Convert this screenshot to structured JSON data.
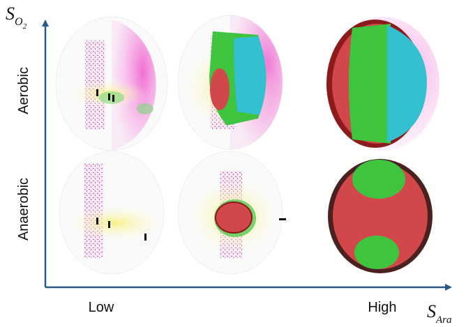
{
  "y_axis": {
    "symbol": "S",
    "subscript": "O",
    "subsubscript": "2"
  },
  "x_axis": {
    "symbol": "S",
    "subscript": "Ara"
  },
  "rows": [
    "Aerobic",
    "Anaerobic"
  ],
  "columns": [
    "Low",
    "High"
  ]
}
